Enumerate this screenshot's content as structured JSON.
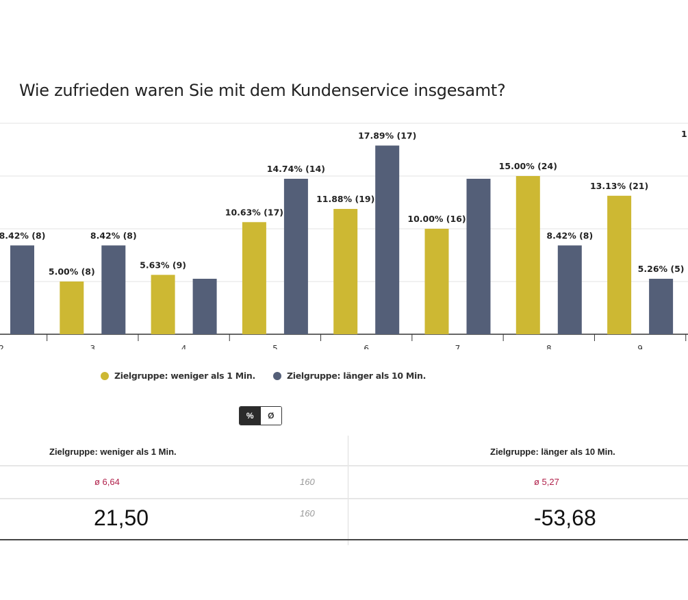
{
  "title": "Wie zufrieden waren Sie mit dem Kundenservice insgesamt?",
  "chart_data": {
    "type": "bar",
    "categories": [
      "2",
      "3",
      "4",
      "5",
      "6",
      "7",
      "8",
      "9"
    ],
    "ylim": [
      0,
      20
    ],
    "grid": true,
    "legend_placement": "bottom",
    "series": [
      {
        "name": "Zielgruppe: weniger als 1 Min.",
        "color": "#cdb833",
        "values": [
          null,
          5.0,
          5.63,
          10.63,
          11.88,
          10.0,
          15.0,
          13.13
        ],
        "labels": [
          ")",
          "5.00% (8)",
          "5.63% (9)",
          "10.63% (17)",
          "11.88% (19)",
          "10.00% (16)",
          "15.00% (24)",
          "13.13% (21)"
        ]
      },
      {
        "name": "Zielgruppe: länger als 10 Min.",
        "color": "#545f78",
        "values": [
          8.42,
          8.42,
          5.26,
          14.74,
          17.89,
          14.74,
          8.42,
          5.26
        ],
        "labels": [
          "8.42% (8)",
          "8.42% (8)",
          "",
          "14.74% (14)",
          "17.89% (17)",
          "",
          "8.42% (8)",
          "5.26% (5)"
        ]
      }
    ],
    "partial_label": "1"
  },
  "legend": [
    "Zielgruppe: weniger als 1 Min.",
    "Zielgruppe: länger als 10 Min."
  ],
  "toggle": {
    "percent": "%",
    "average": "Ø",
    "active": "percent"
  },
  "table": {
    "headers": [
      "Zielgruppe: weniger als 1 Min.",
      "Zielgruppe: länger als 10 Min."
    ],
    "avg": [
      "ø 6,64",
      "ø 5,27"
    ],
    "n1": "160",
    "n2": "160",
    "big": [
      "21,50",
      "-53,68"
    ]
  }
}
